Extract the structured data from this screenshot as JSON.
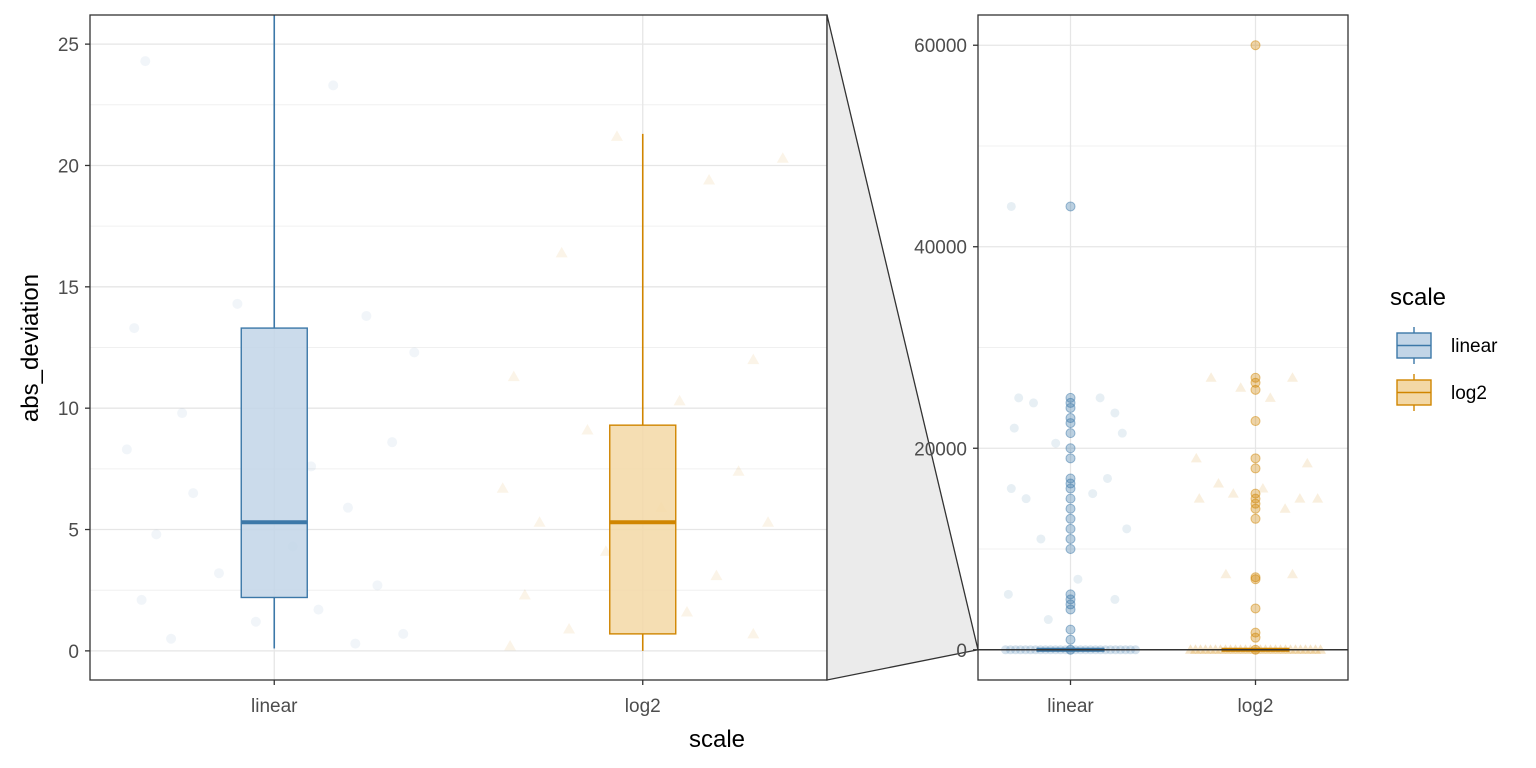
{
  "chart_data": [
    {
      "panel": "main",
      "type": "boxplot",
      "xlabel": "scale",
      "ylabel": "abs_deviation",
      "categories": [
        "linear",
        "log2"
      ],
      "ylim": [
        -1.2,
        26.2
      ],
      "y_ticks": [
        0,
        5,
        10,
        15,
        20,
        25
      ],
      "grid": true,
      "boxes": [
        {
          "category": "linear",
          "q1": 2.2,
          "median": 5.3,
          "q3": 13.3,
          "whisker_low": 0.1,
          "whisker_high": 26.2
        },
        {
          "category": "log2",
          "q1": 0.7,
          "median": 5.3,
          "q3": 9.3,
          "whisker_low": 0.0,
          "whisker_high": 21.3
        }
      ],
      "points": [
        {
          "category": "linear",
          "x": -0.35,
          "y": 24.3
        },
        {
          "category": "linear",
          "x": 0.16,
          "y": 23.3
        },
        {
          "category": "linear",
          "x": -0.1,
          "y": 14.3
        },
        {
          "category": "linear",
          "x": 0.25,
          "y": 13.8
        },
        {
          "category": "linear",
          "x": -0.38,
          "y": 13.3
        },
        {
          "category": "linear",
          "x": 0.38,
          "y": 12.3
        },
        {
          "category": "linear",
          "x": -0.25,
          "y": 9.8
        },
        {
          "category": "linear",
          "x": 0.32,
          "y": 8.6
        },
        {
          "category": "linear",
          "x": -0.4,
          "y": 8.3
        },
        {
          "category": "linear",
          "x": 0.1,
          "y": 7.6
        },
        {
          "category": "linear",
          "x": -0.22,
          "y": 6.5
        },
        {
          "category": "linear",
          "x": 0.2,
          "y": 5.9
        },
        {
          "category": "linear",
          "x": -0.32,
          "y": 4.8
        },
        {
          "category": "linear",
          "x": 0.05,
          "y": 4.3
        },
        {
          "category": "linear",
          "x": -0.15,
          "y": 3.2
        },
        {
          "category": "linear",
          "x": 0.28,
          "y": 2.7
        },
        {
          "category": "linear",
          "x": -0.36,
          "y": 2.1
        },
        {
          "category": "linear",
          "x": 0.12,
          "y": 1.7
        },
        {
          "category": "linear",
          "x": -0.05,
          "y": 1.2
        },
        {
          "category": "linear",
          "x": 0.35,
          "y": 0.7
        },
        {
          "category": "linear",
          "x": -0.28,
          "y": 0.5
        },
        {
          "category": "linear",
          "x": 0.22,
          "y": 0.3
        },
        {
          "category": "log2",
          "x": -0.07,
          "y": 21.2
        },
        {
          "category": "log2",
          "x": 0.38,
          "y": 20.3
        },
        {
          "category": "log2",
          "x": 0.18,
          "y": 19.4
        },
        {
          "category": "log2",
          "x": -0.22,
          "y": 16.4
        },
        {
          "category": "log2",
          "x": 0.3,
          "y": 12.0
        },
        {
          "category": "log2",
          "x": -0.35,
          "y": 11.3
        },
        {
          "category": "log2",
          "x": 0.1,
          "y": 10.3
        },
        {
          "category": "log2",
          "x": -0.15,
          "y": 9.1
        },
        {
          "category": "log2",
          "x": 0.26,
          "y": 7.4
        },
        {
          "category": "log2",
          "x": -0.38,
          "y": 6.7
        },
        {
          "category": "log2",
          "x": 0.05,
          "y": 5.9
        },
        {
          "category": "log2",
          "x": -0.28,
          "y": 5.3
        },
        {
          "category": "log2",
          "x": 0.34,
          "y": 5.3
        },
        {
          "category": "log2",
          "x": -0.1,
          "y": 4.1
        },
        {
          "category": "log2",
          "x": 0.2,
          "y": 3.1
        },
        {
          "category": "log2",
          "x": -0.32,
          "y": 2.3
        },
        {
          "category": "log2",
          "x": 0.12,
          "y": 1.6
        },
        {
          "category": "log2",
          "x": -0.2,
          "y": 0.9
        },
        {
          "category": "log2",
          "x": 0.3,
          "y": 0.7
        },
        {
          "category": "log2",
          "x": -0.36,
          "y": 0.2
        }
      ]
    },
    {
      "panel": "zoom",
      "type": "scatter",
      "categories": [
        "linear",
        "log2"
      ],
      "ylim": [
        -3000,
        63000
      ],
      "y_ticks": [
        0,
        20000,
        40000,
        60000
      ],
      "grid": true,
      "points": [
        {
          "category": "linear",
          "y": 44000
        },
        {
          "category": "linear",
          "y": 25000
        },
        {
          "category": "linear",
          "y": 24500
        },
        {
          "category": "linear",
          "y": 24000
        },
        {
          "category": "linear",
          "y": 23000
        },
        {
          "category": "linear",
          "y": 22500
        },
        {
          "category": "linear",
          "y": 21500
        },
        {
          "category": "linear",
          "y": 20000
        },
        {
          "category": "linear",
          "y": 19000
        },
        {
          "category": "linear",
          "y": 17000
        },
        {
          "category": "linear",
          "y": 16500
        },
        {
          "category": "linear",
          "y": 16000
        },
        {
          "category": "linear",
          "y": 15000
        },
        {
          "category": "linear",
          "y": 14000
        },
        {
          "category": "linear",
          "y": 13000
        },
        {
          "category": "linear",
          "y": 12000
        },
        {
          "category": "linear",
          "y": 11000
        },
        {
          "category": "linear",
          "y": 10000
        },
        {
          "category": "linear",
          "y": 5500
        },
        {
          "category": "linear",
          "y": 5000
        },
        {
          "category": "linear",
          "y": 4500
        },
        {
          "category": "linear",
          "y": 4000
        },
        {
          "category": "linear",
          "y": 2000
        },
        {
          "category": "linear",
          "y": 1000
        },
        {
          "category": "linear",
          "y": 0
        },
        {
          "category": "log2",
          "y": 60000
        },
        {
          "category": "log2",
          "y": 27000
        },
        {
          "category": "log2",
          "y": 26500
        },
        {
          "category": "log2",
          "y": 25800
        },
        {
          "category": "log2",
          "y": 22700
        },
        {
          "category": "log2",
          "y": 19000
        },
        {
          "category": "log2",
          "y": 18000
        },
        {
          "category": "log2",
          "y": 15500
        },
        {
          "category": "log2",
          "y": 15000
        },
        {
          "category": "log2",
          "y": 14500
        },
        {
          "category": "log2",
          "y": 14000
        },
        {
          "category": "log2",
          "y": 13000
        },
        {
          "category": "log2",
          "y": 7200
        },
        {
          "category": "log2",
          "y": 7000
        },
        {
          "category": "log2",
          "y": 4100
        },
        {
          "category": "log2",
          "y": 1700
        },
        {
          "category": "log2",
          "y": 1200
        },
        {
          "category": "log2",
          "y": 0
        }
      ],
      "background_points": [
        {
          "category": "linear",
          "x": -0.4,
          "y": 44000
        },
        {
          "category": "linear",
          "x": -0.35,
          "y": 25000
        },
        {
          "category": "linear",
          "x": 0.2,
          "y": 25000
        },
        {
          "category": "linear",
          "x": -0.25,
          "y": 24500
        },
        {
          "category": "linear",
          "x": 0.3,
          "y": 23500
        },
        {
          "category": "linear",
          "x": -0.38,
          "y": 22000
        },
        {
          "category": "linear",
          "x": 0.35,
          "y": 21500
        },
        {
          "category": "linear",
          "x": -0.1,
          "y": 20500
        },
        {
          "category": "linear",
          "x": 0.25,
          "y": 17000
        },
        {
          "category": "linear",
          "x": -0.4,
          "y": 16000
        },
        {
          "category": "linear",
          "x": 0.15,
          "y": 15500
        },
        {
          "category": "linear",
          "x": -0.3,
          "y": 15000
        },
        {
          "category": "linear",
          "x": 0.38,
          "y": 12000
        },
        {
          "category": "linear",
          "x": -0.2,
          "y": 11000
        },
        {
          "category": "linear",
          "x": 0.05,
          "y": 7000
        },
        {
          "category": "linear",
          "x": -0.42,
          "y": 5500
        },
        {
          "category": "linear",
          "x": 0.3,
          "y": 5000
        },
        {
          "category": "linear",
          "x": -0.15,
          "y": 3000
        },
        {
          "category": "log2",
          "x": -0.3,
          "y": 27000
        },
        {
          "category": "log2",
          "x": 0.25,
          "y": 27000
        },
        {
          "category": "log2",
          "x": -0.1,
          "y": 26000
        },
        {
          "category": "log2",
          "x": 0.1,
          "y": 25000
        },
        {
          "category": "log2",
          "x": -0.4,
          "y": 19000
        },
        {
          "category": "log2",
          "x": 0.35,
          "y": 18500
        },
        {
          "category": "log2",
          "x": -0.25,
          "y": 16500
        },
        {
          "category": "log2",
          "x": 0.05,
          "y": 16000
        },
        {
          "category": "log2",
          "x": -0.38,
          "y": 15000
        },
        {
          "category": "log2",
          "x": 0.3,
          "y": 15000
        },
        {
          "category": "log2",
          "x": 0.42,
          "y": 15000
        },
        {
          "category": "log2",
          "x": -0.15,
          "y": 15500
        },
        {
          "category": "log2",
          "x": 0.2,
          "y": 14000
        },
        {
          "category": "log2",
          "x": -0.2,
          "y": 7500
        },
        {
          "category": "log2",
          "x": 0.25,
          "y": 7500
        }
      ]
    }
  ],
  "legend": {
    "title": "scale",
    "items": [
      {
        "label": "linear",
        "color": "#3c78a8",
        "fill": "#c2d5e7"
      },
      {
        "label": "log2",
        "color": "#d08500",
        "fill": "#f3d8a6"
      }
    ]
  },
  "colors": {
    "linear": "#3c78a8",
    "log2": "#d08500"
  }
}
